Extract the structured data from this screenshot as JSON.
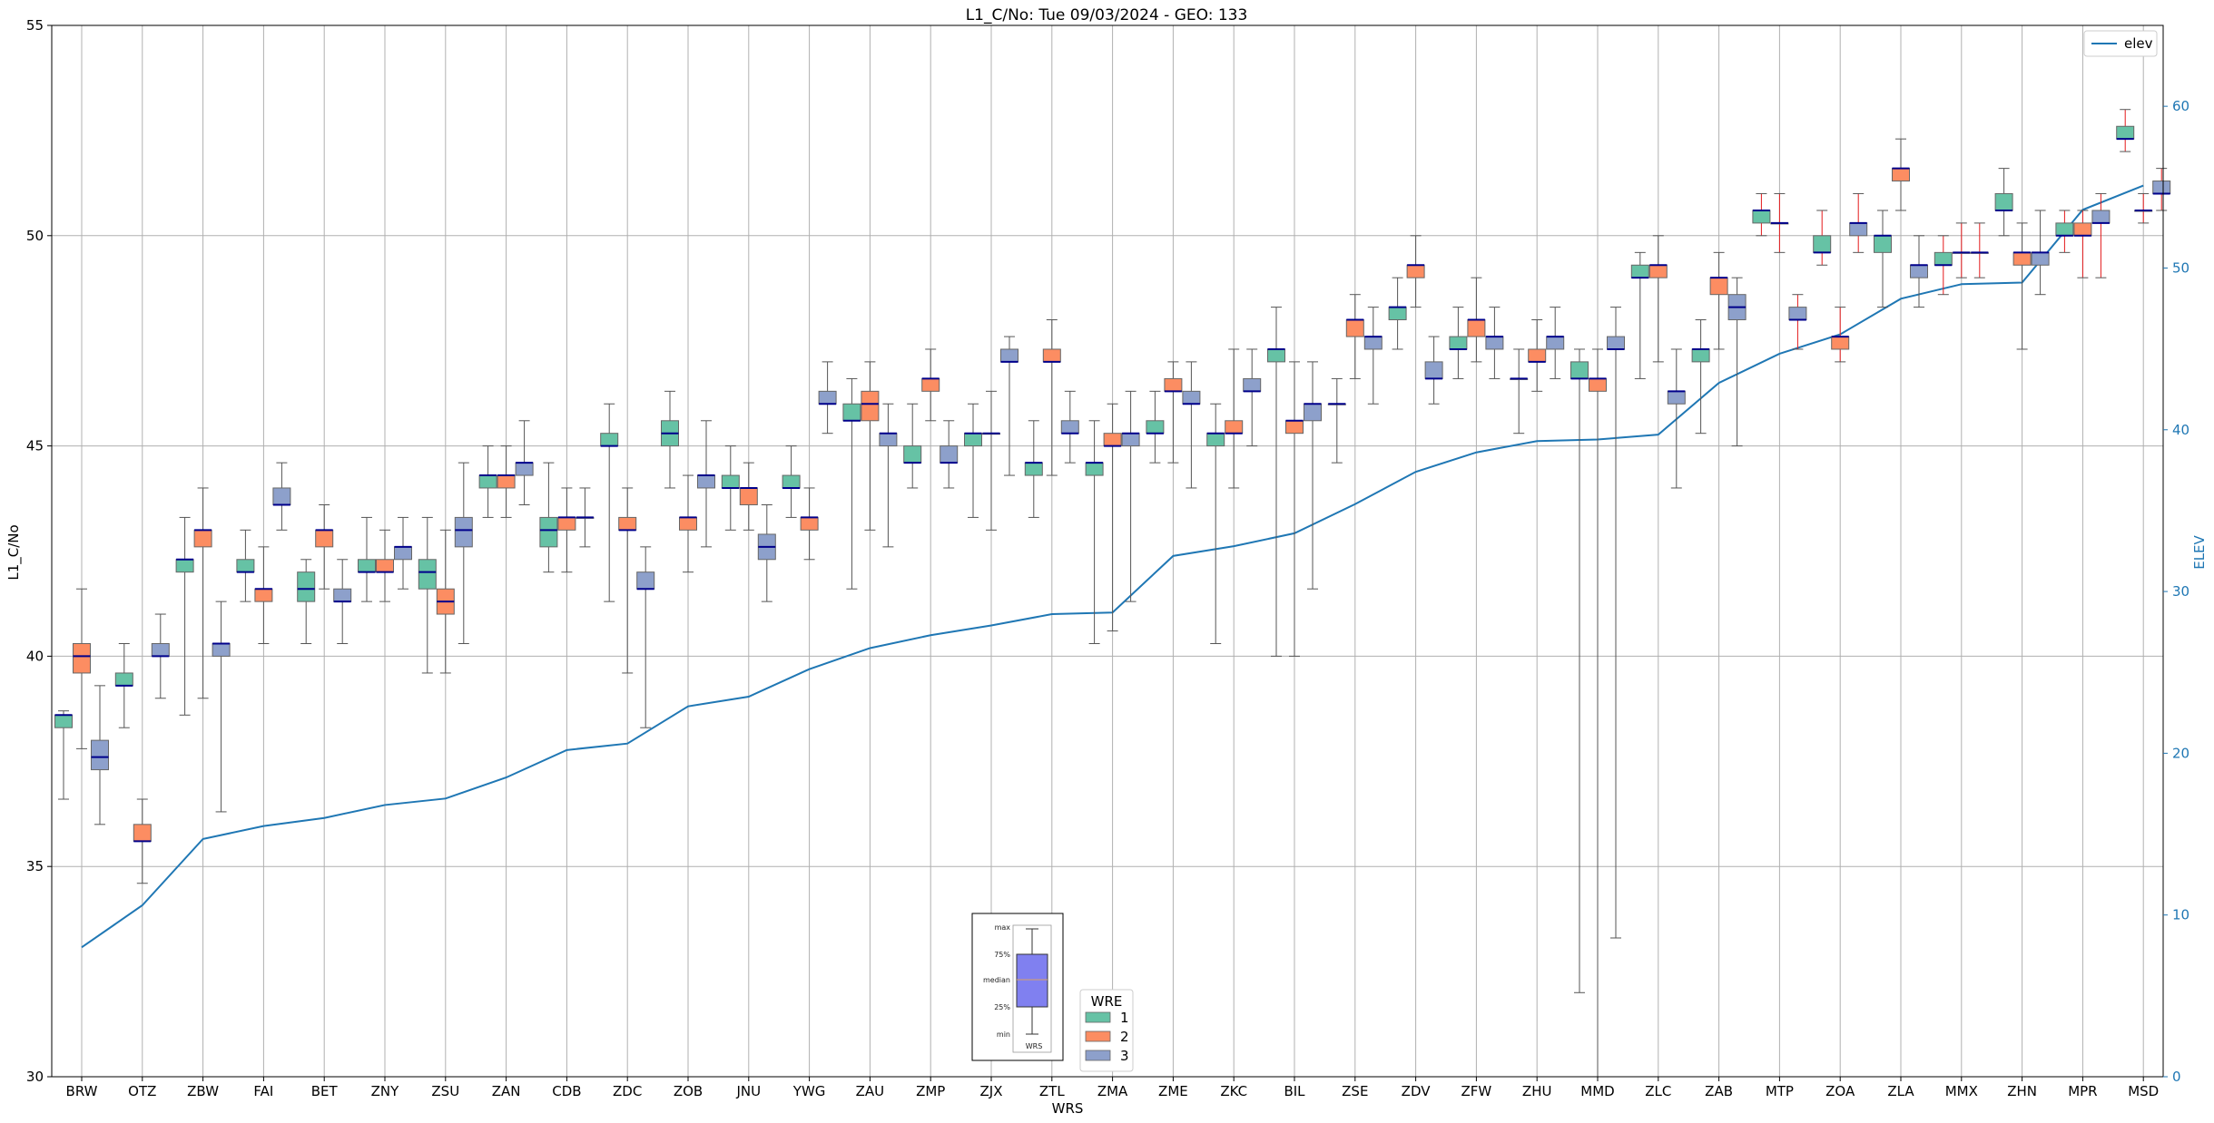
{
  "chart_data": {
    "type": "box",
    "title": "L1_C/No: Tue 09/03/2024 - GEO: 133",
    "xlabel": "WRS",
    "ylabel": "L1_C/No",
    "y2label": "ELEV",
    "ylim": [
      30,
      55
    ],
    "y2lim": [
      0,
      65
    ],
    "yticks": [
      30,
      35,
      40,
      45,
      50,
      55
    ],
    "y2ticks": [
      0,
      10,
      20,
      30,
      40,
      50,
      60
    ],
    "grid": true,
    "box_legend": {
      "title": "WRE",
      "position": "bottom-center",
      "entries": [
        "1",
        "2",
        "3"
      ]
    },
    "line_legend": {
      "position": "top-right",
      "entries": [
        "elev"
      ]
    },
    "inset_labels": {
      "max": "max",
      "q3": "75%",
      "median": "median",
      "q1": "25%",
      "min": "min",
      "xlabel": "WRS"
    },
    "colors": {
      "wre1": "#66c2a5",
      "wre2": "#fc8d62",
      "wre3": "#8da0cb",
      "elev": "#1f77b4",
      "median": "#00008b",
      "highlight_whisker": "#e41a1c",
      "whisker": "#555555"
    },
    "categories": [
      "BRW",
      "OTZ",
      "ZBW",
      "FAI",
      "BET",
      "ZNY",
      "ZSU",
      "ZAN",
      "CDB",
      "ZDC",
      "ZOB",
      "JNU",
      "YWG",
      "ZAU",
      "ZMP",
      "ZJX",
      "ZTL",
      "ZMA",
      "ZME",
      "ZKC",
      "BIL",
      "ZSE",
      "ZDV",
      "ZFW",
      "ZHU",
      "MMD",
      "ZLC",
      "ZAB",
      "MTP",
      "ZOA",
      "ZLA",
      "MMX",
      "ZHN",
      "MPR",
      "MSD"
    ],
    "elev_series": {
      "name": "elev",
      "values": [
        8.0,
        10.6,
        14.7,
        15.5,
        16.0,
        16.8,
        17.2,
        18.5,
        20.2,
        20.6,
        22.9,
        23.5,
        25.2,
        26.5,
        27.3,
        27.9,
        28.6,
        28.7,
        32.2,
        32.8,
        33.6,
        35.4,
        37.4,
        38.6,
        39.3,
        39.4,
        39.7,
        42.9,
        44.7,
        45.9,
        48.1,
        49.0,
        49.1,
        53.6,
        55.1
      ]
    },
    "boxes": [
      {
        "wrs": "BRW",
        "wre": "1",
        "min": 36.6,
        "q1": 38.3,
        "median": 38.6,
        "q3": 38.6,
        "max": 38.7
      },
      {
        "wrs": "BRW",
        "wre": "2",
        "min": 37.8,
        "q1": 39.6,
        "median": 40.0,
        "q3": 40.3,
        "max": 41.6
      },
      {
        "wrs": "BRW",
        "wre": "3",
        "min": 36.0,
        "q1": 37.3,
        "median": 37.6,
        "q3": 38.0,
        "max": 39.3
      },
      {
        "wrs": "OTZ",
        "wre": "1",
        "min": 38.3,
        "q1": 39.3,
        "median": 39.3,
        "q3": 39.6,
        "max": 40.3
      },
      {
        "wrs": "OTZ",
        "wre": "2",
        "min": 34.6,
        "q1": 35.6,
        "median": 35.6,
        "q3": 36.0,
        "max": 36.6
      },
      {
        "wrs": "OTZ",
        "wre": "3",
        "min": 39.0,
        "q1": 40.0,
        "median": 40.0,
        "q3": 40.3,
        "max": 41.0
      },
      {
        "wrs": "ZBW",
        "wre": "1",
        "min": 38.6,
        "q1": 42.0,
        "median": 42.3,
        "q3": 42.3,
        "max": 43.3
      },
      {
        "wrs": "ZBW",
        "wre": "2",
        "min": 39.0,
        "q1": 42.6,
        "median": 43.0,
        "q3": 43.0,
        "max": 44.0
      },
      {
        "wrs": "ZBW",
        "wre": "3",
        "min": 36.3,
        "q1": 40.0,
        "median": 40.3,
        "q3": 40.3,
        "max": 41.3
      },
      {
        "wrs": "FAI",
        "wre": "1",
        "min": 41.3,
        "q1": 42.0,
        "median": 42.0,
        "q3": 42.3,
        "max": 43.0
      },
      {
        "wrs": "FAI",
        "wre": "2",
        "min": 40.3,
        "q1": 41.3,
        "median": 41.6,
        "q3": 41.6,
        "max": 42.6
      },
      {
        "wrs": "FAI",
        "wre": "3",
        "min": 43.0,
        "q1": 43.6,
        "median": 43.6,
        "q3": 44.0,
        "max": 44.6
      },
      {
        "wrs": "BET",
        "wre": "1",
        "min": 40.3,
        "q1": 41.3,
        "median": 41.6,
        "q3": 42.0,
        "max": 42.3
      },
      {
        "wrs": "BET",
        "wre": "2",
        "min": 41.6,
        "q1": 42.6,
        "median": 43.0,
        "q3": 43.0,
        "max": 43.6
      },
      {
        "wrs": "BET",
        "wre": "3",
        "min": 40.3,
        "q1": 41.3,
        "median": 41.3,
        "q3": 41.6,
        "max": 42.3
      },
      {
        "wrs": "ZNY",
        "wre": "1",
        "min": 41.3,
        "q1": 42.0,
        "median": 42.0,
        "q3": 42.3,
        "max": 43.3
      },
      {
        "wrs": "ZNY",
        "wre": "2",
        "min": 41.3,
        "q1": 42.0,
        "median": 42.0,
        "q3": 42.3,
        "max": 43.0
      },
      {
        "wrs": "ZNY",
        "wre": "3",
        "min": 41.6,
        "q1": 42.3,
        "median": 42.6,
        "q3": 42.6,
        "max": 43.3
      },
      {
        "wrs": "ZSU",
        "wre": "1",
        "min": 39.6,
        "q1": 41.6,
        "median": 42.0,
        "q3": 42.3,
        "max": 43.3
      },
      {
        "wrs": "ZSU",
        "wre": "2",
        "min": 39.6,
        "q1": 41.0,
        "median": 41.3,
        "q3": 41.6,
        "max": 43.0
      },
      {
        "wrs": "ZSU",
        "wre": "3",
        "min": 40.3,
        "q1": 42.6,
        "median": 43.0,
        "q3": 43.3,
        "max": 44.6
      },
      {
        "wrs": "ZAN",
        "wre": "1",
        "min": 43.3,
        "q1": 44.0,
        "median": 44.3,
        "q3": 44.3,
        "max": 45.0
      },
      {
        "wrs": "ZAN",
        "wre": "2",
        "min": 43.3,
        "q1": 44.0,
        "median": 44.3,
        "q3": 44.3,
        "max": 45.0
      },
      {
        "wrs": "ZAN",
        "wre": "3",
        "min": 43.6,
        "q1": 44.3,
        "median": 44.6,
        "q3": 44.6,
        "max": 45.6
      },
      {
        "wrs": "CDB",
        "wre": "1",
        "min": 42.0,
        "q1": 42.6,
        "median": 43.0,
        "q3": 43.3,
        "max": 44.6
      },
      {
        "wrs": "CDB",
        "wre": "2",
        "min": 42.0,
        "q1": 43.0,
        "median": 43.3,
        "q3": 43.3,
        "max": 44.0
      },
      {
        "wrs": "CDB",
        "wre": "3",
        "min": 42.6,
        "q1": 43.3,
        "median": 43.3,
        "q3": 43.3,
        "max": 44.0
      },
      {
        "wrs": "ZDC",
        "wre": "1",
        "min": 41.3,
        "q1": 45.0,
        "median": 45.0,
        "q3": 45.3,
        "max": 46.0
      },
      {
        "wrs": "ZDC",
        "wre": "2",
        "min": 39.6,
        "q1": 43.0,
        "median": 43.0,
        "q3": 43.3,
        "max": 44.0
      },
      {
        "wrs": "ZDC",
        "wre": "3",
        "min": 38.3,
        "q1": 41.6,
        "median": 41.6,
        "q3": 42.0,
        "max": 42.6
      },
      {
        "wrs": "ZOB",
        "wre": "1",
        "min": 44.0,
        "q1": 45.0,
        "median": 45.3,
        "q3": 45.6,
        "max": 46.3
      },
      {
        "wrs": "ZOB",
        "wre": "2",
        "min": 42.0,
        "q1": 43.0,
        "median": 43.3,
        "q3": 43.3,
        "max": 44.3
      },
      {
        "wrs": "ZOB",
        "wre": "3",
        "min": 42.6,
        "q1": 44.0,
        "median": 44.3,
        "q3": 44.3,
        "max": 45.6
      },
      {
        "wrs": "JNU",
        "wre": "1",
        "min": 43.0,
        "q1": 44.0,
        "median": 44.0,
        "q3": 44.3,
        "max": 45.0
      },
      {
        "wrs": "JNU",
        "wre": "2",
        "min": 43.0,
        "q1": 43.6,
        "median": 44.0,
        "q3": 44.0,
        "max": 44.6
      },
      {
        "wrs": "JNU",
        "wre": "3",
        "min": 41.3,
        "q1": 42.3,
        "median": 42.6,
        "q3": 42.9,
        "max": 43.6
      },
      {
        "wrs": "YWG",
        "wre": "1",
        "min": 43.3,
        "q1": 44.0,
        "median": 44.0,
        "q3": 44.3,
        "max": 45.0
      },
      {
        "wrs": "YWG",
        "wre": "2",
        "min": 42.3,
        "q1": 43.0,
        "median": 43.3,
        "q3": 43.3,
        "max": 44.0
      },
      {
        "wrs": "YWG",
        "wre": "3",
        "min": 45.3,
        "q1": 46.0,
        "median": 46.0,
        "q3": 46.3,
        "max": 47.0
      },
      {
        "wrs": "ZAU",
        "wre": "1",
        "min": 41.6,
        "q1": 45.6,
        "median": 45.6,
        "q3": 46.0,
        "max": 46.6
      },
      {
        "wrs": "ZAU",
        "wre": "2",
        "min": 43.0,
        "q1": 45.6,
        "median": 46.0,
        "q3": 46.3,
        "max": 47.0
      },
      {
        "wrs": "ZAU",
        "wre": "3",
        "min": 42.6,
        "q1": 45.0,
        "median": 45.3,
        "q3": 45.3,
        "max": 46.0
      },
      {
        "wrs": "ZMP",
        "wre": "1",
        "min": 44.0,
        "q1": 44.6,
        "median": 44.6,
        "q3": 45.0,
        "max": 46.0
      },
      {
        "wrs": "ZMP",
        "wre": "2",
        "min": 45.6,
        "q1": 46.3,
        "median": 46.6,
        "q3": 46.6,
        "max": 47.3
      },
      {
        "wrs": "ZMP",
        "wre": "3",
        "min": 44.0,
        "q1": 44.6,
        "median": 44.6,
        "q3": 45.0,
        "max": 45.6
      },
      {
        "wrs": "ZJX",
        "wre": "1",
        "min": 43.3,
        "q1": 45.0,
        "median": 45.3,
        "q3": 45.3,
        "max": 46.0
      },
      {
        "wrs": "ZJX",
        "wre": "2",
        "min": 43.0,
        "q1": 45.3,
        "median": 45.3,
        "q3": 45.3,
        "max": 46.3
      },
      {
        "wrs": "ZJX",
        "wre": "3",
        "min": 44.3,
        "q1": 47.0,
        "median": 47.0,
        "q3": 47.3,
        "max": 47.6
      },
      {
        "wrs": "ZTL",
        "wre": "1",
        "min": 43.3,
        "q1": 44.3,
        "median": 44.6,
        "q3": 44.6,
        "max": 45.6
      },
      {
        "wrs": "ZTL",
        "wre": "2",
        "min": 44.3,
        "q1": 47.0,
        "median": 47.0,
        "q3": 47.3,
        "max": 48.0
      },
      {
        "wrs": "ZTL",
        "wre": "3",
        "min": 44.6,
        "q1": 45.3,
        "median": 45.3,
        "q3": 45.6,
        "max": 46.3
      },
      {
        "wrs": "ZMA",
        "wre": "1",
        "min": 40.3,
        "q1": 44.3,
        "median": 44.6,
        "q3": 44.6,
        "max": 45.6
      },
      {
        "wrs": "ZMA",
        "wre": "2",
        "min": 40.6,
        "q1": 45.0,
        "median": 45.0,
        "q3": 45.3,
        "max": 46.0
      },
      {
        "wrs": "ZMA",
        "wre": "3",
        "min": 41.3,
        "q1": 45.0,
        "median": 45.3,
        "q3": 45.3,
        "max": 46.3
      },
      {
        "wrs": "ZME",
        "wre": "1",
        "min": 44.6,
        "q1": 45.3,
        "median": 45.3,
        "q3": 45.6,
        "max": 46.3
      },
      {
        "wrs": "ZME",
        "wre": "2",
        "min": 44.6,
        "q1": 46.3,
        "median": 46.3,
        "q3": 46.6,
        "max": 47.0
      },
      {
        "wrs": "ZME",
        "wre": "3",
        "min": 44.0,
        "q1": 46.0,
        "median": 46.0,
        "q3": 46.3,
        "max": 47.0
      },
      {
        "wrs": "ZKC",
        "wre": "1",
        "min": 40.3,
        "q1": 45.0,
        "median": 45.3,
        "q3": 45.3,
        "max": 46.0
      },
      {
        "wrs": "ZKC",
        "wre": "2",
        "min": 44.0,
        "q1": 45.3,
        "median": 45.3,
        "q3": 45.6,
        "max": 47.3
      },
      {
        "wrs": "ZKC",
        "wre": "3",
        "min": 45.0,
        "q1": 46.3,
        "median": 46.3,
        "q3": 46.6,
        "max": 47.3
      },
      {
        "wrs": "BIL",
        "wre": "1",
        "min": 40.0,
        "q1": 47.0,
        "median": 47.3,
        "q3": 47.3,
        "max": 48.3
      },
      {
        "wrs": "BIL",
        "wre": "2",
        "min": 40.0,
        "q1": 45.3,
        "median": 45.6,
        "q3": 45.6,
        "max": 47.0
      },
      {
        "wrs": "BIL",
        "wre": "3",
        "min": 41.6,
        "q1": 45.6,
        "median": 46.0,
        "q3": 46.0,
        "max": 47.0
      },
      {
        "wrs": "ZSE",
        "wre": "1",
        "min": 44.6,
        "q1": 46.0,
        "median": 46.0,
        "q3": 46.0,
        "max": 46.6
      },
      {
        "wrs": "ZSE",
        "wre": "2",
        "min": 46.6,
        "q1": 47.6,
        "median": 48.0,
        "q3": 48.0,
        "max": 48.6
      },
      {
        "wrs": "ZSE",
        "wre": "3",
        "min": 46.0,
        "q1": 47.3,
        "median": 47.6,
        "q3": 47.6,
        "max": 48.3
      },
      {
        "wrs": "ZDV",
        "wre": "1",
        "min": 47.3,
        "q1": 48.0,
        "median": 48.3,
        "q3": 48.3,
        "max": 49.0
      },
      {
        "wrs": "ZDV",
        "wre": "2",
        "min": 48.3,
        "q1": 49.0,
        "median": 49.3,
        "q3": 49.3,
        "max": 50.0
      },
      {
        "wrs": "ZDV",
        "wre": "3",
        "min": 46.0,
        "q1": 46.6,
        "median": 46.6,
        "q3": 47.0,
        "max": 47.6
      },
      {
        "wrs": "ZFW",
        "wre": "1",
        "min": 46.6,
        "q1": 47.3,
        "median": 47.3,
        "q3": 47.6,
        "max": 48.3
      },
      {
        "wrs": "ZFW",
        "wre": "2",
        "min": 47.0,
        "q1": 47.6,
        "median": 48.0,
        "q3": 48.0,
        "max": 49.0
      },
      {
        "wrs": "ZFW",
        "wre": "3",
        "min": 46.6,
        "q1": 47.3,
        "median": 47.6,
        "q3": 47.6,
        "max": 48.3
      },
      {
        "wrs": "ZHU",
        "wre": "1",
        "min": 45.3,
        "q1": 46.6,
        "median": 46.6,
        "q3": 46.6,
        "max": 47.3
      },
      {
        "wrs": "ZHU",
        "wre": "2",
        "min": 46.3,
        "q1": 47.0,
        "median": 47.0,
        "q3": 47.3,
        "max": 48.0
      },
      {
        "wrs": "ZHU",
        "wre": "3",
        "min": 46.6,
        "q1": 47.3,
        "median": 47.6,
        "q3": 47.6,
        "max": 48.3
      },
      {
        "wrs": "MMD",
        "wre": "1",
        "min": 32.0,
        "q1": 46.6,
        "median": 46.6,
        "q3": 47.0,
        "max": 47.3
      },
      {
        "wrs": "MMD",
        "wre": "2",
        "min": 30.0,
        "q1": 46.3,
        "median": 46.6,
        "q3": 46.6,
        "max": 47.3
      },
      {
        "wrs": "MMD",
        "wre": "3",
        "min": 33.3,
        "q1": 47.3,
        "median": 47.3,
        "q3": 47.6,
        "max": 48.3
      },
      {
        "wrs": "ZLC",
        "wre": "1",
        "min": 46.6,
        "q1": 49.0,
        "median": 49.0,
        "q3": 49.3,
        "max": 49.6
      },
      {
        "wrs": "ZLC",
        "wre": "2",
        "min": 47.0,
        "q1": 49.0,
        "median": 49.3,
        "q3": 49.3,
        "max": 50.0
      },
      {
        "wrs": "ZLC",
        "wre": "3",
        "min": 44.0,
        "q1": 46.0,
        "median": 46.3,
        "q3": 46.3,
        "max": 47.3
      },
      {
        "wrs": "ZAB",
        "wre": "1",
        "min": 45.3,
        "q1": 47.0,
        "median": 47.3,
        "q3": 47.3,
        "max": 48.0
      },
      {
        "wrs": "ZAB",
        "wre": "2",
        "min": 47.3,
        "q1": 48.6,
        "median": 49.0,
        "q3": 49.0,
        "max": 49.6
      },
      {
        "wrs": "ZAB",
        "wre": "3",
        "min": 45.0,
        "q1": 48.0,
        "median": 48.3,
        "q3": 48.6,
        "max": 49.0
      },
      {
        "wrs": "MTP",
        "wre": "1",
        "min": 50.0,
        "q1": 50.3,
        "median": 50.6,
        "q3": 50.6,
        "max": 51.0
      },
      {
        "wrs": "MTP",
        "wre": "2",
        "min": 49.6,
        "q1": 50.3,
        "median": 50.3,
        "q3": 50.3,
        "max": 51.0
      },
      {
        "wrs": "MTP",
        "wre": "3",
        "min": 47.3,
        "q1": 48.0,
        "median": 48.0,
        "q3": 48.3,
        "max": 48.6
      },
      {
        "wrs": "ZOA",
        "wre": "1",
        "min": 49.3,
        "q1": 49.6,
        "median": 49.6,
        "q3": 50.0,
        "max": 50.6
      },
      {
        "wrs": "ZOA",
        "wre": "2",
        "min": 47.0,
        "q1": 47.3,
        "median": 47.6,
        "q3": 47.6,
        "max": 48.3
      },
      {
        "wrs": "ZOA",
        "wre": "3",
        "min": 49.6,
        "q1": 50.0,
        "median": 50.3,
        "q3": 50.3,
        "max": 51.0
      },
      {
        "wrs": "ZLA",
        "wre": "1",
        "min": 48.3,
        "q1": 49.6,
        "median": 50.0,
        "q3": 50.0,
        "max": 50.6
      },
      {
        "wrs": "ZLA",
        "wre": "2",
        "min": 50.6,
        "q1": 51.3,
        "median": 51.6,
        "q3": 51.6,
        "max": 52.3
      },
      {
        "wrs": "ZLA",
        "wre": "3",
        "min": 48.3,
        "q1": 49.0,
        "median": 49.3,
        "q3": 49.3,
        "max": 50.0
      },
      {
        "wrs": "MMX",
        "wre": "1",
        "min": 48.6,
        "q1": 49.3,
        "median": 49.3,
        "q3": 49.6,
        "max": 50.0
      },
      {
        "wrs": "MMX",
        "wre": "2",
        "min": 49.0,
        "q1": 49.6,
        "median": 49.6,
        "q3": 49.6,
        "max": 50.3
      },
      {
        "wrs": "MMX",
        "wre": "3",
        "min": 49.0,
        "q1": 49.6,
        "median": 49.6,
        "q3": 49.6,
        "max": 50.3
      },
      {
        "wrs": "ZHN",
        "wre": "1",
        "min": 50.0,
        "q1": 50.6,
        "median": 50.6,
        "q3": 51.0,
        "max": 51.6
      },
      {
        "wrs": "ZHN",
        "wre": "2",
        "min": 47.3,
        "q1": 49.3,
        "median": 49.6,
        "q3": 49.6,
        "max": 50.3
      },
      {
        "wrs": "ZHN",
        "wre": "3",
        "min": 48.6,
        "q1": 49.3,
        "median": 49.6,
        "q3": 49.6,
        "max": 50.6
      },
      {
        "wrs": "MPR",
        "wre": "1",
        "min": 49.6,
        "q1": 50.0,
        "median": 50.0,
        "q3": 50.3,
        "max": 50.6
      },
      {
        "wrs": "MPR",
        "wre": "2",
        "min": 49.0,
        "q1": 50.0,
        "median": 50.0,
        "q3": 50.3,
        "max": 50.6
      },
      {
        "wrs": "MPR",
        "wre": "3",
        "min": 49.0,
        "q1": 50.3,
        "median": 50.3,
        "q3": 50.6,
        "max": 51.0
      },
      {
        "wrs": "MSD",
        "wre": "1",
        "min": 52.0,
        "q1": 52.3,
        "median": 52.3,
        "q3": 52.6,
        "max": 53.0
      },
      {
        "wrs": "MSD",
        "wre": "2",
        "min": 50.3,
        "q1": 50.6,
        "median": 50.6,
        "q3": 50.6,
        "max": 51.0
      },
      {
        "wrs": "MSD",
        "wre": "3",
        "min": 50.6,
        "q1": 51.0,
        "median": 51.0,
        "q3": 51.3,
        "max": 51.6
      }
    ],
    "red_whisker_wrs": [
      "MTP",
      "ZOA",
      "MMX",
      "MPR",
      "MSD"
    ]
  }
}
